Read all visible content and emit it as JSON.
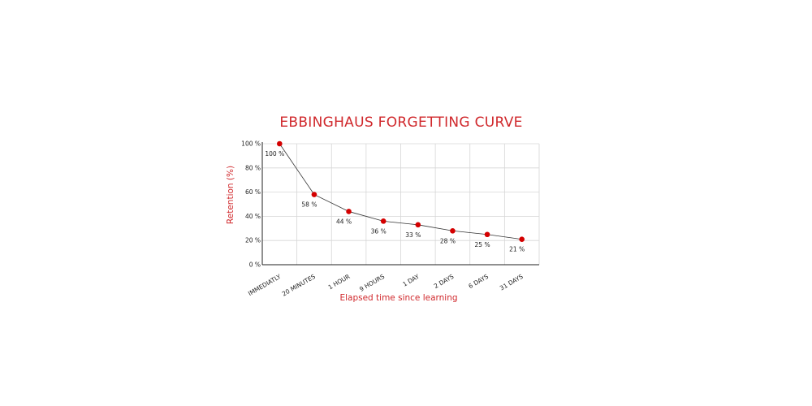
{
  "chart_data": {
    "type": "line",
    "title": "EBBINGHAUS FORGETTING CURVE",
    "xlabel": "Elapsed time since learning",
    "ylabel": "Retention (%)",
    "categories": [
      "IMMEDIATLY",
      "20 MINUTES",
      "1 HOUR",
      "9 HOURS",
      "1 DAY",
      "2 DAYS",
      "6 DAYS",
      "31 DAYS"
    ],
    "values": [
      100,
      58,
      44,
      36,
      33,
      28,
      25,
      21
    ],
    "data_labels": [
      "100 %",
      "58 %",
      "44 %",
      "36 %",
      "33 %",
      "28 %",
      "25 %",
      "21 %"
    ],
    "yticks": [
      0,
      20,
      40,
      60,
      80,
      100
    ],
    "ytick_labels": [
      "0 %",
      "20 %",
      "40 %",
      "60 %",
      "80 %",
      "100 %"
    ],
    "ylim": [
      0,
      100
    ],
    "grid": true,
    "colors": {
      "title": "#d0282c",
      "point": "#d40000",
      "line": "#333333",
      "grid": "#d6d6d6"
    }
  }
}
